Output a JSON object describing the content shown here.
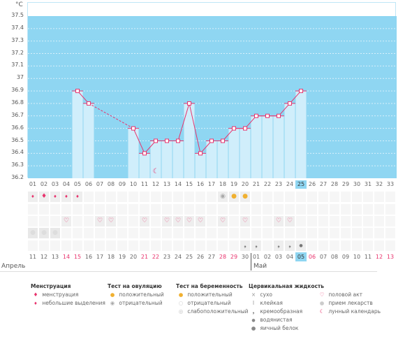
{
  "chart_data": {
    "type": "bar+line",
    "ylabel": "°C",
    "ylim": [
      36.2,
      37.5
    ],
    "yticks": [
      "37.5",
      "37.4",
      "37.3",
      "37.2",
      "37.1",
      "37",
      "36.9",
      "36.8",
      "36.7",
      "36.6",
      "36.5",
      "36.4",
      "36.3",
      "36.2"
    ],
    "cycle_days": [
      "01",
      "02",
      "03",
      "04",
      "05",
      "06",
      "07",
      "08",
      "09",
      "10",
      "11",
      "12",
      "13",
      "14",
      "15",
      "16",
      "17",
      "18",
      "19",
      "20",
      "21",
      "22",
      "23",
      "24",
      "25",
      "26",
      "27",
      "28",
      "29",
      "30",
      "31",
      "32",
      "33"
    ],
    "temps": {
      "5": 36.9,
      "6": 36.8,
      "10": 36.6,
      "11": 36.4,
      "12": 36.5,
      "13": 36.5,
      "14": 36.5,
      "15": 36.8,
      "16": 36.4,
      "17": 36.5,
      "18": 36.5,
      "19": 36.6,
      "20": 36.6,
      "21": 36.7,
      "22": 36.7,
      "23": 36.7,
      "24": 36.8,
      "25": 36.9
    },
    "current_day": 25,
    "moon_day": 12
  },
  "dates": [
    "11",
    "12",
    "13",
    "14",
    "15",
    "16",
    "17",
    "18",
    "19",
    "20",
    "21",
    "22",
    "23",
    "24",
    "25",
    "26",
    "27",
    "28",
    "29",
    "30",
    "01",
    "02",
    "03",
    "04",
    "05",
    "06",
    "07",
    "08",
    "09",
    "10",
    "11",
    "12",
    "13"
  ],
  "weekend_idx": [
    4,
    5,
    11,
    12,
    18,
    19,
    26,
    32,
    33
  ],
  "months": {
    "april": "Апрель",
    "may": "Май"
  },
  "rows": {
    "menstruation": {
      "1": "spot",
      "2": "heavy",
      "3": "spot",
      "4": "spot",
      "5": "spot"
    },
    "ovulation": {
      "18": "neg",
      "19": "pos",
      "20": "pos"
    },
    "sex": [
      4,
      7,
      8,
      11,
      13,
      14,
      15,
      16,
      18,
      20,
      23,
      24
    ],
    "pills": [
      1,
      2,
      3
    ],
    "fluid": {
      "20": "creamy",
      "21": "creamy",
      "23": "creamy",
      "24": "creamy",
      "25": "watery"
    }
  },
  "legend": {
    "menstruation": {
      "title": "Менструация",
      "items": [
        "менструация",
        "небольшие выделения"
      ]
    },
    "ovulation": {
      "title": "Тест на овуляцию",
      "items": [
        "положительный",
        "отрицательный"
      ]
    },
    "pregnancy": {
      "title": "Тест на беременность",
      "items": [
        "положительный",
        "отрицательный",
        "слабоположительный"
      ]
    },
    "fluid": {
      "title": "Цервикальная жидкость",
      "items": [
        "сухо",
        "клейкая",
        "кремообразная",
        "водянистая",
        "яичный белок"
      ]
    },
    "other": {
      "items": [
        "половой акт",
        "прием лекарств",
        "лунный календарь"
      ]
    }
  },
  "colors": {
    "bg": "#8fd6f2",
    "bar": "#d0eefb",
    "line": "#e8336d"
  }
}
